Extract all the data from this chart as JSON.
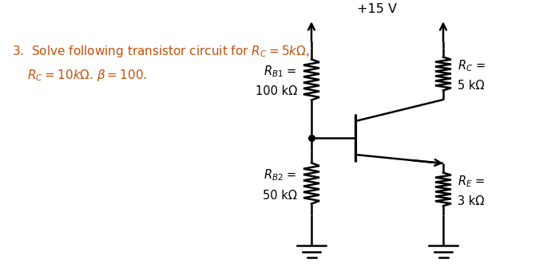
{
  "bg_color": "#ffffff",
  "line_color": "#000000",
  "text_color": "#C8500A",
  "vcc_label": "+15 V",
  "rb1_label1": "$R_{B1}$ =",
  "rb1_label2": "100 kΩ",
  "rb2_label1": "$R_{B2}$ =",
  "rb2_label2": "50 kΩ",
  "rc_label1": "$R_C$ =",
  "rc_label2": "5 kΩ",
  "re_label1": "$R_E$ =",
  "re_label2": "3 kΩ",
  "problem_line1": "3.  Solve following transistor circuit for $R_C = 5k\\Omega$,",
  "problem_line2": "    $R_C = 10k\\Omega$. $\\beta = 100$."
}
